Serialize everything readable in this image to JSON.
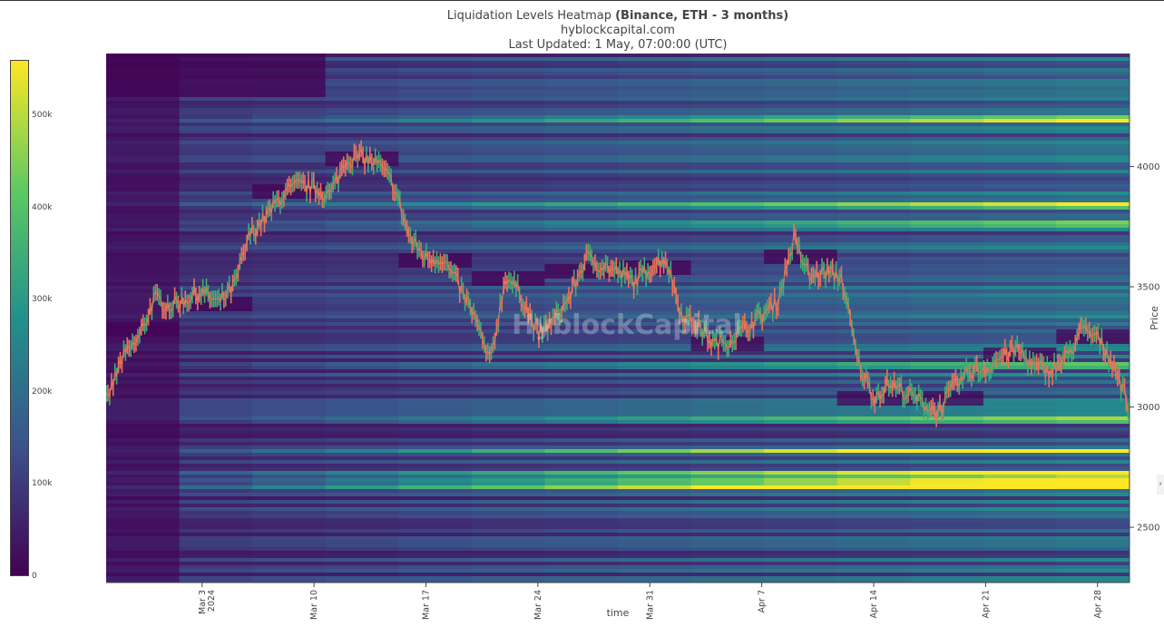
{
  "title": {
    "prefix": "Liquidation Levels Heatmap",
    "bold": "(Binance, ETH - 3 months)",
    "line2": "hyblockcapital.com",
    "line3": "Last Updated: 1 May, 07:00:00 (UTC)"
  },
  "watermark": "HyblockCapital",
  "chart_data": {
    "type": "heatmap",
    "xlabel": "time",
    "ylabel": "Price",
    "ylim": [
      2270,
      4470
    ],
    "xlim_day": [
      -2,
      60
    ],
    "x_ticks": [
      {
        "day": 4,
        "label": "Mar 3",
        "sub": "2024"
      },
      {
        "day": 11,
        "label": "Mar 10"
      },
      {
        "day": 18,
        "label": "Mar 17"
      },
      {
        "day": 25,
        "label": "Mar 24"
      },
      {
        "day": 32,
        "label": "Mar 31"
      },
      {
        "day": 39,
        "label": "Apr 7"
      },
      {
        "day": 46,
        "label": "Apr 14"
      },
      {
        "day": 53,
        "label": "Apr 21"
      },
      {
        "day": 60,
        "label": "Apr 28"
      }
    ],
    "y_ticks": [
      2500,
      3000,
      3500,
      4000
    ],
    "colorscale": [
      "#440154",
      "#3b528b",
      "#21918c",
      "#5ec962",
      "#fde725"
    ],
    "colorbar": {
      "range": [
        0,
        560000
      ],
      "ticks": [
        {
          "v": 0,
          "label": "0"
        },
        {
          "v": 100000,
          "label": "100k"
        },
        {
          "v": 200000,
          "label": "200k"
        },
        {
          "v": 300000,
          "label": "300k"
        },
        {
          "v": 400000,
          "label": "400k"
        },
        {
          "v": 500000,
          "label": "500k"
        }
      ]
    },
    "price_series": {
      "name": "ETH price",
      "color": "#e8735a",
      "points": [
        [
          -2,
          3020
        ],
        [
          -1,
          3200
        ],
        [
          0,
          3280
        ],
        [
          1,
          3450
        ],
        [
          2,
          3420
        ],
        [
          3,
          3450
        ],
        [
          4,
          3480
        ],
        [
          5,
          3430
        ],
        [
          6,
          3500
        ],
        [
          7,
          3720
        ],
        [
          8,
          3790
        ],
        [
          9,
          3880
        ],
        [
          10,
          3920
        ],
        [
          11,
          3910
        ],
        [
          12,
          3880
        ],
        [
          13,
          4030
        ],
        [
          14,
          4040
        ],
        [
          15,
          4010
        ],
        [
          16,
          3920
        ],
        [
          17,
          3700
        ],
        [
          18,
          3620
        ],
        [
          19,
          3620
        ],
        [
          20,
          3510
        ],
        [
          21,
          3380
        ],
        [
          22,
          3180
        ],
        [
          23,
          3550
        ],
        [
          24,
          3460
        ],
        [
          25,
          3300
        ],
        [
          26,
          3360
        ],
        [
          27,
          3460
        ],
        [
          28,
          3620
        ],
        [
          29,
          3590
        ],
        [
          30,
          3560
        ],
        [
          31,
          3520
        ],
        [
          32,
          3580
        ],
        [
          33,
          3620
        ],
        [
          34,
          3380
        ],
        [
          35,
          3340
        ],
        [
          36,
          3260
        ],
        [
          37,
          3280
        ],
        [
          38,
          3330
        ],
        [
          39,
          3380
        ],
        [
          40,
          3440
        ],
        [
          41,
          3700
        ],
        [
          42,
          3540
        ],
        [
          43,
          3560
        ],
        [
          44,
          3540
        ],
        [
          45,
          3190
        ],
        [
          46,
          3040
        ],
        [
          47,
          3100
        ],
        [
          48,
          3060
        ],
        [
          49,
          3020
        ],
        [
          50,
          2980
        ],
        [
          51,
          3080
        ],
        [
          52,
          3150
        ],
        [
          53,
          3160
        ],
        [
          54,
          3210
        ],
        [
          55,
          3240
        ],
        [
          56,
          3170
        ],
        [
          57,
          3150
        ],
        [
          58,
          3200
        ],
        [
          59,
          3320
        ],
        [
          60,
          3290
        ],
        [
          61,
          3180
        ],
        [
          62,
          3000
        ]
      ]
    }
  }
}
